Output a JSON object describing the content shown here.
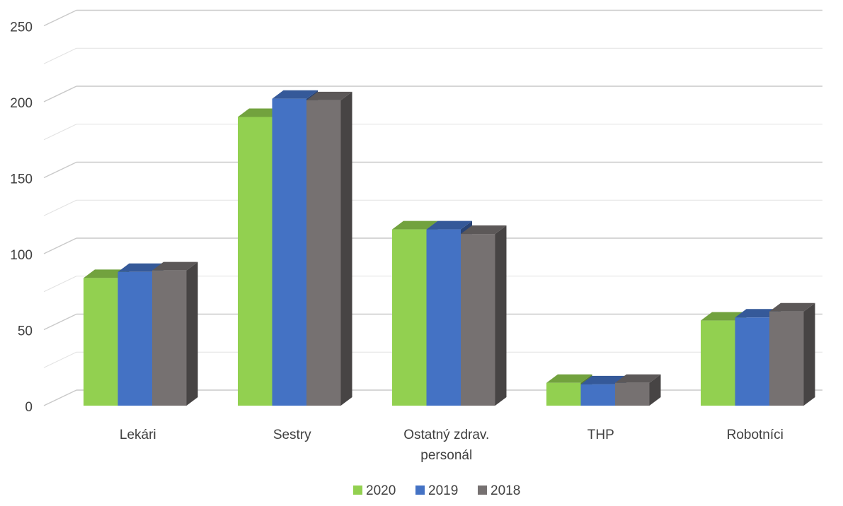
{
  "chart_data": {
    "type": "bar",
    "style": "3d-clustered-column",
    "categories": [
      [
        "Lekári"
      ],
      [
        "Sestry"
      ],
      [
        "Ostatný zdrav.",
        "personál"
      ],
      [
        "THP"
      ],
      [
        "Robotníci"
      ]
    ],
    "series": [
      {
        "name": "2020",
        "values": [
          84,
          190,
          116,
          15,
          56
        ],
        "color": "#92d050"
      },
      {
        "name": "2019",
        "values": [
          88,
          202,
          116,
          14,
          58
        ],
        "color": "#4472c4"
      },
      {
        "name": "2018",
        "values": [
          89,
          201,
          113,
          15,
          62
        ],
        "color": "#767171"
      }
    ],
    "ylim": [
      0,
      250
    ],
    "yticks": [
      0,
      50,
      100,
      150,
      200,
      250
    ],
    "grid": true,
    "legend": "bottom"
  }
}
